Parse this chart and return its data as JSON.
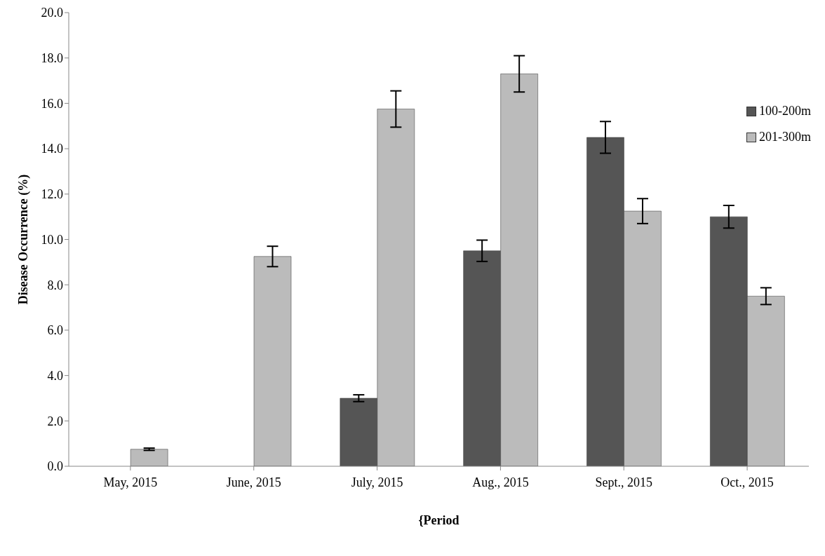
{
  "chart_data": {
    "type": "bar",
    "xlabel": "{Period",
    "ylabel": "Disease Occurrence (%)",
    "categories": [
      "May, 2015",
      "June, 2015",
      "July, 2015",
      "Aug., 2015",
      "Sept., 2015",
      "Oct., 2015"
    ],
    "series": [
      {
        "name": "100-200m",
        "color": "#555555",
        "values": [
          null,
          null,
          3.0,
          9.5,
          14.5,
          11.0
        ],
        "errors": [
          null,
          null,
          0.15,
          0.47,
          0.7,
          0.5
        ]
      },
      {
        "name": "201-300m",
        "color": "#bbbbbb",
        "values": [
          0.75,
          9.25,
          15.75,
          17.3,
          11.25,
          7.5
        ],
        "errors": [
          0.05,
          0.45,
          0.8,
          0.8,
          0.55,
          0.37
        ]
      }
    ],
    "ylim": [
      0,
      20
    ],
    "yticks": [
      {
        "value": 0,
        "label": "0.0"
      },
      {
        "value": 2,
        "label": "2.0"
      },
      {
        "value": 4,
        "label": "4.0"
      },
      {
        "value": 6,
        "label": "6.0"
      },
      {
        "value": 8,
        "label": "8.0"
      },
      {
        "value": 10,
        "label": "10.0"
      },
      {
        "value": 12,
        "label": "12.0"
      },
      {
        "value": 14,
        "label": "14.0"
      },
      {
        "value": 16,
        "label": "16.0"
      },
      {
        "value": 18,
        "label": "18.0"
      },
      {
        "value": 20,
        "label": "20.0"
      }
    ],
    "grid": false,
    "legend": "right"
  }
}
